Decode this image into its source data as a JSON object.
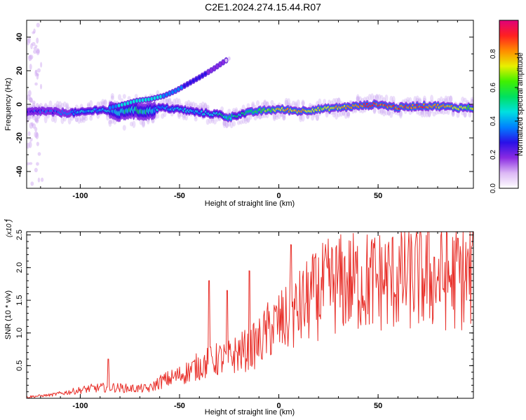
{
  "title": "C2E1.2024.274.15.44.R07",
  "chart_data": [
    {
      "type": "heatmap",
      "title": "",
      "xlabel": "Height of straight line (km)",
      "ylabel": "Frequency (Hz)",
      "xlim": [
        -127,
        98
      ],
      "ylim": [
        -50,
        50
      ],
      "x_ticks": [
        -100,
        -50,
        0,
        50
      ],
      "y_ticks": [
        -40,
        -20,
        0,
        20,
        40
      ],
      "grid": false,
      "colorbar": {
        "label": "Normalized spectral amplitude",
        "range": [
          0,
          1
        ],
        "ticks": [
          0.0,
          0.2,
          0.4,
          0.6,
          0.8
        ],
        "colors": [
          "#ffffff",
          "#dcb8f5",
          "#8a2be2",
          "#2a10e8",
          "#0080ff",
          "#00e0e0",
          "#00e060",
          "#40f000",
          "#e8f000",
          "#ff8c00",
          "#ff2020",
          "#e0007a"
        ]
      },
      "ridge": {
        "x": [
          -127,
          -120,
          -110,
          -100,
          -90,
          -85,
          -80,
          -75,
          -70,
          -65,
          -60,
          -50,
          -40,
          -30,
          -25,
          -20,
          -10,
          0,
          10,
          20,
          30,
          40,
          50,
          60,
          70,
          80,
          90,
          98
        ],
        "freq": [
          -5,
          -4,
          -5,
          -5,
          -3,
          -4,
          -5,
          -3,
          -4,
          -4,
          -2,
          -3,
          -5,
          -6,
          -8,
          -6,
          -4,
          -3,
          -4,
          -3,
          -2,
          -1,
          0,
          -2,
          -1,
          -1,
          -2,
          -2
        ],
        "peak_amplitude": [
          0.25,
          0.3,
          0.35,
          0.4,
          0.4,
          0.45,
          0.45,
          0.5,
          0.5,
          0.45,
          0.4,
          0.45,
          0.4,
          0.5,
          0.55,
          0.5,
          0.6,
          0.75,
          0.8,
          0.7,
          0.75,
          0.85,
          0.9,
          0.85,
          0.85,
          0.8,
          0.75,
          0.7
        ]
      },
      "secondary_branch": {
        "x": [
          -85,
          -78,
          -72,
          -65,
          -58,
          -52,
          -46,
          -40,
          -33,
          -28,
          -24
        ],
        "freq": [
          -2,
          0,
          2,
          3,
          5,
          8,
          12,
          16,
          21,
          25,
          28
        ],
        "peak_amplitude": [
          0.35,
          0.45,
          0.5,
          0.45,
          0.4,
          0.35,
          0.3,
          0.25,
          0.2,
          0.15,
          0.1
        ]
      }
    },
    {
      "type": "line",
      "title": "",
      "xlabel": "Height of straight line (km)",
      "ylabel": "SNR (10 * v/v)",
      "y_multiplier_label": "(x10 )",
      "y_multiplier_exponent": "4",
      "xlim": [
        -127,
        98
      ],
      "ylim": [
        0,
        2.55
      ],
      "x_ticks": [
        -100,
        -50,
        0,
        50
      ],
      "y_ticks": [
        0.5,
        1.0,
        1.5,
        2.0,
        2.5
      ],
      "grid": false,
      "series": [
        {
          "color": "#e8302a",
          "trend_x": [
            -127,
            -115,
            -105,
            -95,
            -85,
            -75,
            -65,
            -60,
            -50,
            -45,
            -40,
            -35,
            -30,
            -25,
            -20,
            -15,
            -10,
            -5,
            0,
            5,
            10,
            15,
            20,
            25,
            30,
            40,
            50,
            60,
            70,
            80,
            90,
            98
          ],
          "trend_y": [
            0.02,
            0.05,
            0.1,
            0.15,
            0.17,
            0.15,
            0.15,
            0.25,
            0.35,
            0.42,
            0.5,
            0.55,
            0.6,
            0.62,
            0.7,
            0.75,
            0.85,
            1.05,
            1.15,
            1.2,
            1.35,
            1.5,
            1.6,
            1.7,
            1.75,
            1.78,
            1.8,
            1.82,
            1.85,
            1.85,
            1.85,
            1.85
          ],
          "spikes": [
            {
              "x": -86,
              "y": 0.6
            },
            {
              "x": -35,
              "y": 1.8
            },
            {
              "x": -26,
              "y": 1.65
            },
            {
              "x": -15,
              "y": 1.95
            },
            {
              "x": 6,
              "y": 2.35
            },
            {
              "x": 18,
              "y": 2.15
            },
            {
              "x": 75,
              "y": 2.55
            },
            {
              "x": 90,
              "y": 2.45
            }
          ]
        }
      ]
    }
  ]
}
